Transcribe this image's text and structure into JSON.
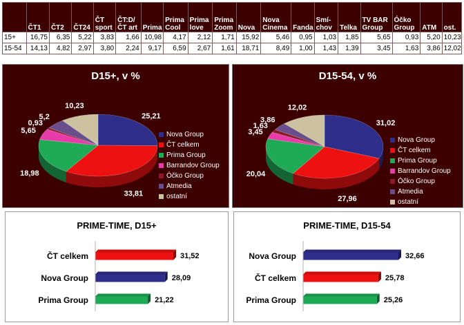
{
  "table": {
    "columns": [
      "",
      "ČT1",
      "ČT2",
      "ČT24",
      "ČT sport",
      "ČT:D/ ČT art",
      "Prima",
      "Prima Cool",
      "Prima love",
      "Prima Zoom",
      "Nova",
      "Nova Cinema",
      "Fanda",
      "Smí-chov",
      "Telka",
      "TV BAR Group",
      "Óčko Group",
      "ATM",
      "ost."
    ],
    "rows": [
      {
        "label": "15+",
        "values": [
          "16,75",
          "6,35",
          "5,22",
          "3,83",
          "1,66",
          "10,98",
          "4,17",
          "2,12",
          "1,71",
          "15,92",
          "5,46",
          "0,95",
          "1,03",
          "1,85",
          "5,65",
          "0,93",
          "5,20",
          "10,23"
        ]
      },
      {
        "label": "15-54",
        "values": [
          "14,13",
          "4,82",
          "2,97",
          "3,80",
          "2,24",
          "9,17",
          "6,59",
          "2,67",
          "1,61",
          "18,71",
          "8,49",
          "1,00",
          "1,43",
          "1,39",
          "3,45",
          "1,63",
          "3,86",
          "12,02"
        ]
      }
    ]
  },
  "legend": [
    {
      "label": "Nova Group",
      "color": "#2e2e8a"
    },
    {
      "label": "ČT celkem",
      "color": "#ee1111"
    },
    {
      "label": "Prima Group",
      "color": "#1faa55"
    },
    {
      "label": "Barrandov Group",
      "color": "#e83aa8"
    },
    {
      "label": "Óčko Group",
      "color": "#8a1a2a"
    },
    {
      "label": "Atmedia",
      "color": "#6a4e8c"
    },
    {
      "label": "ostatní",
      "color": "#cdc2a0"
    }
  ],
  "chart_data": [
    {
      "type": "pie",
      "title": "D15+, v %",
      "categories": [
        "Nova Group",
        "ČT celkem",
        "Prima Group",
        "Barrandov Group",
        "Óčko Group",
        "Atmedia",
        "ostatní"
      ],
      "values": [
        25.21,
        33.81,
        18.98,
        5.65,
        0.93,
        5.2,
        10.23
      ],
      "labels": [
        "25,21",
        "33,81",
        "18,98",
        "5,65",
        "0,93",
        "5,2",
        "10,23"
      ],
      "legend_position": "right"
    },
    {
      "type": "pie",
      "title": "D15-54, v %",
      "categories": [
        "Nova Group",
        "ČT celkem",
        "Prima Group",
        "Barrandov Group",
        "Óčko Group",
        "Atmedia",
        "ostatní"
      ],
      "values": [
        31.02,
        27.96,
        20.04,
        3.45,
        1.63,
        3.86,
        12.02
      ],
      "labels": [
        "31,02",
        "27,96",
        "20,04",
        "3,45",
        "1,63",
        "3,86",
        "12,02"
      ],
      "legend_position": "right"
    },
    {
      "type": "bar",
      "orientation": "horizontal",
      "title": "PRIME-TIME, D15+",
      "categories": [
        "ČT celkem",
        "Nova Group",
        "Prima Group"
      ],
      "values": [
        31.52,
        28.09,
        21.22
      ],
      "labels": [
        "31,52",
        "28,09",
        "21,22"
      ],
      "colors": [
        "#ee1111",
        "#2e2e8a",
        "#1faa55"
      ]
    },
    {
      "type": "bar",
      "orientation": "horizontal",
      "title": "PRIME-TIME, D15-54",
      "categories": [
        "Nova Group",
        "ČT celkem",
        "Prima Group"
      ],
      "values": [
        32.66,
        25.78,
        25.26
      ],
      "labels": [
        "32,66",
        "25,78",
        "25,26"
      ],
      "colors": [
        "#2e2e8a",
        "#ee1111",
        "#1faa55"
      ]
    }
  ]
}
